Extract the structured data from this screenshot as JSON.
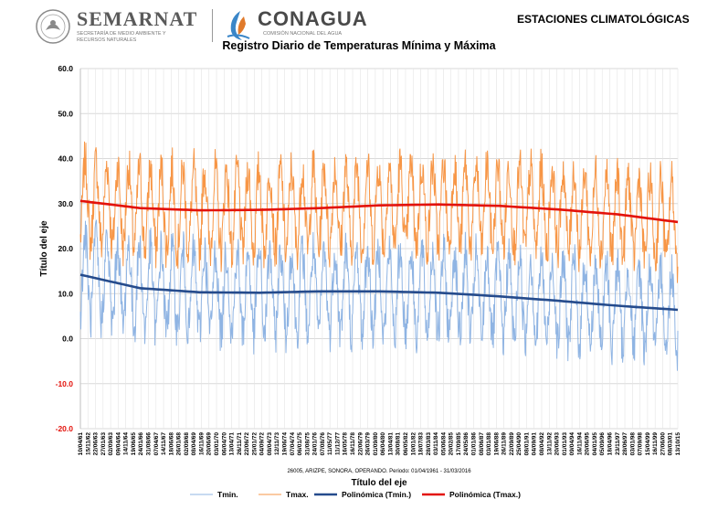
{
  "header": {
    "org1_name": "SEMARNAT",
    "org1_sub": "Secretaría de Medio Ambiente y Recursos Naturales",
    "org2_name": "CONAGUA",
    "org2_sub": "Comisión Nacional del Agua",
    "section": "ESTACIONES CLIMATOLÓGICAS"
  },
  "chart_data": {
    "type": "line",
    "title": "Registro Diario de Temperaturas Mínima y Máxima",
    "subtitle": "26005, ARIZPE, SONORA, OPERANDO. Periodo: 01/04/1961 - 31/03/2016",
    "xlabel": "Título del eje",
    "ylabel": "Título del eje",
    "ylim": [
      -20,
      60
    ],
    "yticks": [
      "60.0",
      "50.0",
      "40.0",
      "30.0",
      "20.0",
      "10.0",
      "0.0",
      "-10.0",
      "-20.0"
    ],
    "grid": true,
    "legend_position": "bottom",
    "x_tick_labels": [
      "10/04/61",
      "15/11/62",
      "22/06/63",
      "27/01/63",
      "02/09/63",
      "09/04/64",
      "14/11/64",
      "19/06/65",
      "24/01/66",
      "31/08/66",
      "07/04/67",
      "14/11/67",
      "18/06/68",
      "26/01/68",
      "02/09/68",
      "08/04/69",
      "16/11/69",
      "20/06/69",
      "03/01/70",
      "06/04/70",
      "13/04/71",
      "26/11/71",
      "22/06/72",
      "25/01/72",
      "04/09/72",
      "08/04/73",
      "12/11/73",
      "19/06/74",
      "07/04/74",
      "06/01/75",
      "31/08/75",
      "24/01/76",
      "07/08/76",
      "11/05/77",
      "11/12/77",
      "16/05/78",
      "16/11/78",
      "22/06/79",
      "26/03/79",
      "01/09/80",
      "06/04/80",
      "13/04/81",
      "30/08/81",
      "06/05/82",
      "10/01/82",
      "18/07/83",
      "28/03/83",
      "03/11/84",
      "05/06/84",
      "20/02/85",
      "17/09/85",
      "24/05/86",
      "01/01/86",
      "08/06/87",
      "03/01/88",
      "19/06/88",
      "26/11/89",
      "22/09/89",
      "25/04/90",
      "08/01/91",
      "04/09/91",
      "08/04/92",
      "13/11/92",
      "20/06/93",
      "01/01/93",
      "09/04/94",
      "16/11/94",
      "20/06/95",
      "04/01/95",
      "05/09/96",
      "18/04/96",
      "23/11/97",
      "28/06/97",
      "03/01/98",
      "07/09/98",
      "15/04/99",
      "16/11/99",
      "27/06/00",
      "08/03/01",
      "13/10/15"
    ],
    "x_tick_labels_start": "10/04/61",
    "x_tick_labels_end": "13/10/15",
    "series": [
      {
        "name": "Tmin.",
        "color": "#8fb4e3",
        "style": "line",
        "range": [
          -12,
          27
        ],
        "mean": 10
      },
      {
        "name": "Tmax.",
        "color": "#f79646",
        "style": "line",
        "range": [
          5,
          48
        ],
        "mean": 29
      },
      {
        "name": "Polinómica (Tmin.)",
        "color": "#254b8c",
        "style": "trend",
        "x": [
          0,
          10,
          20,
          30,
          40,
          50,
          60,
          70,
          80,
          90,
          100
        ],
        "values": [
          14.2,
          11.2,
          10.3,
          10.2,
          10.5,
          10.5,
          10.2,
          9.4,
          8.4,
          7.3,
          6.4
        ]
      },
      {
        "name": "Polinómica (Tmax.)",
        "color": "#e3120b",
        "style": "trend",
        "x": [
          0,
          10,
          20,
          30,
          40,
          50,
          60,
          70,
          80,
          90,
          100
        ],
        "values": [
          30.6,
          29.0,
          28.5,
          28.6,
          29.0,
          29.6,
          29.8,
          29.5,
          28.7,
          27.6,
          25.9
        ]
      }
    ],
    "legend": [
      "Tmin.",
      "Tmax.",
      "Polinómica (Tmin.)",
      "Polinómica (Tmax.)"
    ]
  }
}
